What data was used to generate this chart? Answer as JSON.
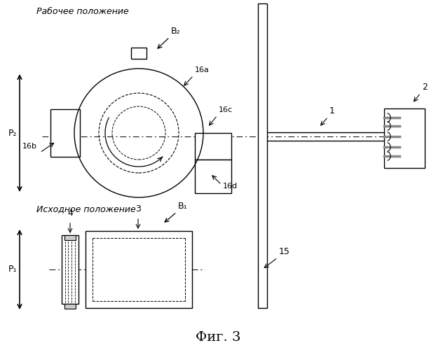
{
  "background_color": "#ffffff",
  "line_color": "#000000",
  "label_rp": "Рабочее положение",
  "label_ip": "Исходное положение",
  "label_fig": "Фиг. 3",
  "labels": {
    "B2": "B₂",
    "B1": "B₁",
    "P2": "P₂",
    "P1": "P₁",
    "16a": "16a",
    "16b": "16b",
    "16c": "16c",
    "16d": "16d",
    "1": "1",
    "2": "2",
    "3": "3",
    "4": "4",
    "15": "15"
  }
}
